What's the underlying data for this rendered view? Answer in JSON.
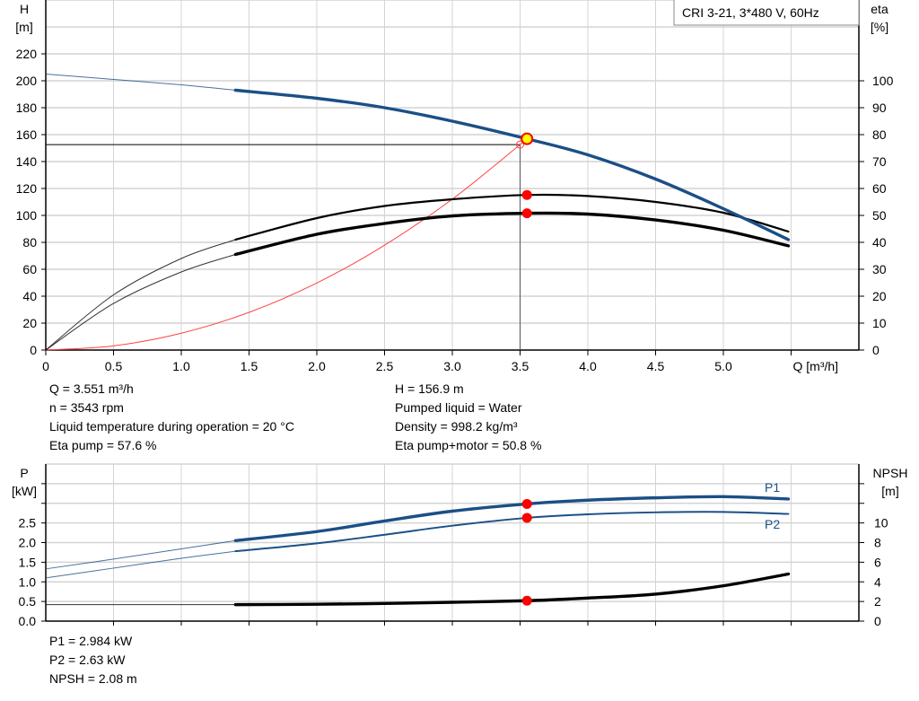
{
  "legend_title": "CRI 3-21, 3*480 V, 60Hz",
  "colors": {
    "head": "#1b4f86",
    "power": "#1b4f86",
    "eta": "#000000",
    "npsh": "#000000",
    "system": "#ff4040",
    "point": "#ff0000",
    "duty_point": "#ffff00"
  },
  "chart_data": [
    {
      "type": "line",
      "xlabel": "Q [m³/h]",
      "ylabel_left": [
        "H",
        "[m]"
      ],
      "ylabel_right": [
        "eta",
        "[%]"
      ],
      "x_ticks": [
        "0",
        "0.5",
        "1.0",
        "1.5",
        "2.0",
        "2.5",
        "3.0",
        "3.5",
        "4.0",
        "4.5",
        "5.0"
      ],
      "y_left_ticks": [
        "0",
        "20",
        "40",
        "60",
        "80",
        "100",
        "120",
        "140",
        "160",
        "180",
        "200",
        "220"
      ],
      "y_right_ticks": [
        "0",
        "10",
        "20",
        "30",
        "40",
        "50",
        "60",
        "70",
        "80",
        "90",
        "100"
      ],
      "xlim": [
        0,
        6.0
      ],
      "ylim_left": [
        0,
        260
      ],
      "ylim_right": [
        0,
        130
      ],
      "grid": true,
      "series": [
        {
          "id": "H",
          "axis": "left",
          "x": [
            0,
            0.5,
            1.0,
            1.4,
            2.0,
            2.5,
            3.0,
            3.551,
            4.0,
            4.5,
            5.0,
            5.48
          ],
          "y": [
            205,
            201,
            197,
            193,
            187,
            180,
            170,
            156.9,
            145,
            127,
            105,
            82
          ]
        },
        {
          "id": "eta_pump",
          "axis": "right",
          "x": [
            0,
            0.5,
            1.0,
            1.4,
            2.0,
            2.5,
            3.0,
            3.551,
            4.0,
            4.5,
            5.0,
            5.48
          ],
          "y": [
            0,
            20.5,
            34,
            41,
            49,
            53.5,
            56,
            57.6,
            57.2,
            55,
            51,
            44
          ]
        },
        {
          "id": "eta_pump_motor",
          "axis": "right",
          "x": [
            0,
            0.5,
            1.0,
            1.4,
            2.0,
            2.5,
            3.0,
            3.551,
            4.0,
            4.5,
            5.0,
            5.48
          ],
          "y": [
            0,
            17.3,
            29,
            35.5,
            43,
            47,
            49.8,
            50.8,
            50.5,
            48.3,
            44.5,
            38.7
          ]
        },
        {
          "id": "system_curve",
          "axis": "left",
          "x": [
            0,
            0.5,
            1.0,
            1.5,
            2.0,
            2.5,
            3.0,
            3.5,
            3.551
          ],
          "y": [
            0,
            3.1,
            12.5,
            28,
            49.8,
            77.9,
            112.1,
            152.6,
            156.9
          ]
        }
      ],
      "operating_point": {
        "Q": 3.551,
        "H": 156.9,
        "eta_pump": 57.6,
        "eta_pump_motor": 50.8
      },
      "required_point": {
        "Q": 3.5,
        "H": 152.6
      }
    },
    {
      "type": "line",
      "ylabel_left": [
        "P",
        "[kW]"
      ],
      "ylabel_right": [
        "NPSH",
        "[m]"
      ],
      "y_left_ticks": [
        "0.0",
        "0.5",
        "1.0",
        "1.5",
        "2.0",
        "2.5"
      ],
      "y_right_ticks": [
        "0",
        "2",
        "4",
        "6",
        "8",
        "10"
      ],
      "xlim": [
        0,
        6.0
      ],
      "ylim_left": [
        0,
        4.0
      ],
      "ylim_right": [
        0,
        16
      ],
      "grid": true,
      "series": [
        {
          "id": "P1",
          "name": "P1",
          "axis": "left",
          "x": [
            0,
            0.5,
            1.0,
            1.4,
            2.0,
            2.5,
            3.0,
            3.551,
            4.0,
            4.5,
            5.0,
            5.48
          ],
          "y": [
            1.33,
            1.58,
            1.84,
            2.05,
            2.28,
            2.55,
            2.8,
            2.984,
            3.08,
            3.14,
            3.17,
            3.11
          ]
        },
        {
          "id": "P2",
          "name": "P2",
          "axis": "left",
          "x": [
            0,
            0.5,
            1.0,
            1.4,
            2.0,
            2.5,
            3.0,
            3.551,
            4.0,
            4.5,
            5.0,
            5.48
          ],
          "y": [
            1.1,
            1.35,
            1.6,
            1.78,
            1.98,
            2.2,
            2.43,
            2.63,
            2.72,
            2.77,
            2.78,
            2.73
          ]
        },
        {
          "id": "NPSH",
          "axis": "right",
          "x": [
            0,
            1.4,
            2.0,
            2.5,
            3.0,
            3.551,
            4.0,
            4.5,
            5.0,
            5.48
          ],
          "y": [
            1.68,
            1.68,
            1.72,
            1.8,
            1.92,
            2.08,
            2.35,
            2.75,
            3.6,
            4.8
          ]
        }
      ],
      "operating_point": {
        "Q": 3.551,
        "P1": 2.984,
        "P2": 2.63,
        "NPSH": 2.08
      }
    }
  ],
  "info_left": [
    "Q = 3.551 m³/h",
    "n = 3543 rpm",
    "Liquid temperature during operation = 20 °C",
    "Eta pump = 57.6 %"
  ],
  "info_right": [
    "H = 156.9 m",
    "Pumped liquid = Water",
    "Density = 998.2 kg/m³",
    "Eta pump+motor = 50.8 %"
  ],
  "info_bottom": [
    "P1 = 2.984 kW",
    "P2 = 2.63 kW",
    "NPSH = 2.08 m"
  ]
}
